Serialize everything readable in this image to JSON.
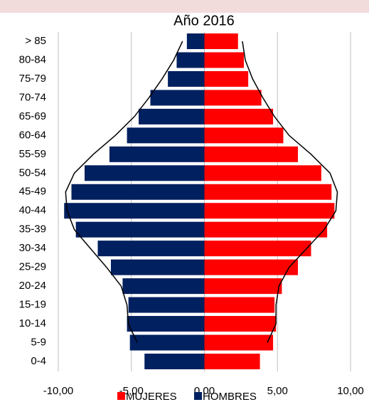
{
  "chart_data": {
    "type": "pyramid",
    "title": "Año 2016",
    "categories": [
      "0-4",
      "5-9",
      "10-14",
      "15-19",
      "20-24",
      "25-29",
      "30-34",
      "35-39",
      "40-44",
      "45-49",
      "50-54",
      "55-59",
      "60-64",
      "65-69",
      "70-74",
      "75-79",
      "80-84",
      "> 85"
    ],
    "series": [
      {
        "name": "MUJERES",
        "color": "#ff0000",
        "values": [
          3.8,
          4.7,
          4.9,
          4.8,
          5.3,
          6.4,
          7.3,
          8.4,
          8.9,
          8.7,
          8.0,
          6.4,
          5.4,
          4.7,
          3.9,
          3.0,
          2.7,
          2.3
        ]
      },
      {
        "name": "HOMBRES",
        "color": "#002060",
        "values": [
          -4.1,
          -5.1,
          -5.3,
          -5.2,
          -5.6,
          -6.4,
          -7.3,
          -8.8,
          -9.6,
          -9.1,
          -8.2,
          -6.5,
          -5.3,
          -4.5,
          -3.7,
          -2.5,
          -1.9,
          -1.2
        ]
      }
    ],
    "lines": [
      {
        "color": "#000000",
        "values": [
          null,
          4.3,
          4.9,
          4.9,
          5.1,
          5.8,
          7.0,
          8.2,
          9.0,
          9.1,
          8.6,
          7.3,
          5.8,
          4.8,
          4.0,
          3.3,
          2.8,
          2.6
        ]
      },
      {
        "color": "#000000",
        "values": [
          null,
          -4.6,
          -5.2,
          -5.3,
          -5.7,
          -6.7,
          -7.8,
          -8.9,
          -9.4,
          -9.5,
          -8.9,
          -7.6,
          -6.1,
          -4.8,
          -3.8,
          -2.9,
          -2.1,
          -1.5
        ]
      }
    ],
    "xlim": [
      -10,
      10
    ],
    "xticks": [
      {
        "value": -10,
        "label": "-10,00"
      },
      {
        "value": -5,
        "label": "-5,00"
      },
      {
        "value": 0,
        "label": "0,00"
      },
      {
        "value": 5,
        "label": "5,00"
      },
      {
        "value": 10,
        "label": "10,00"
      }
    ],
    "grid": true
  }
}
